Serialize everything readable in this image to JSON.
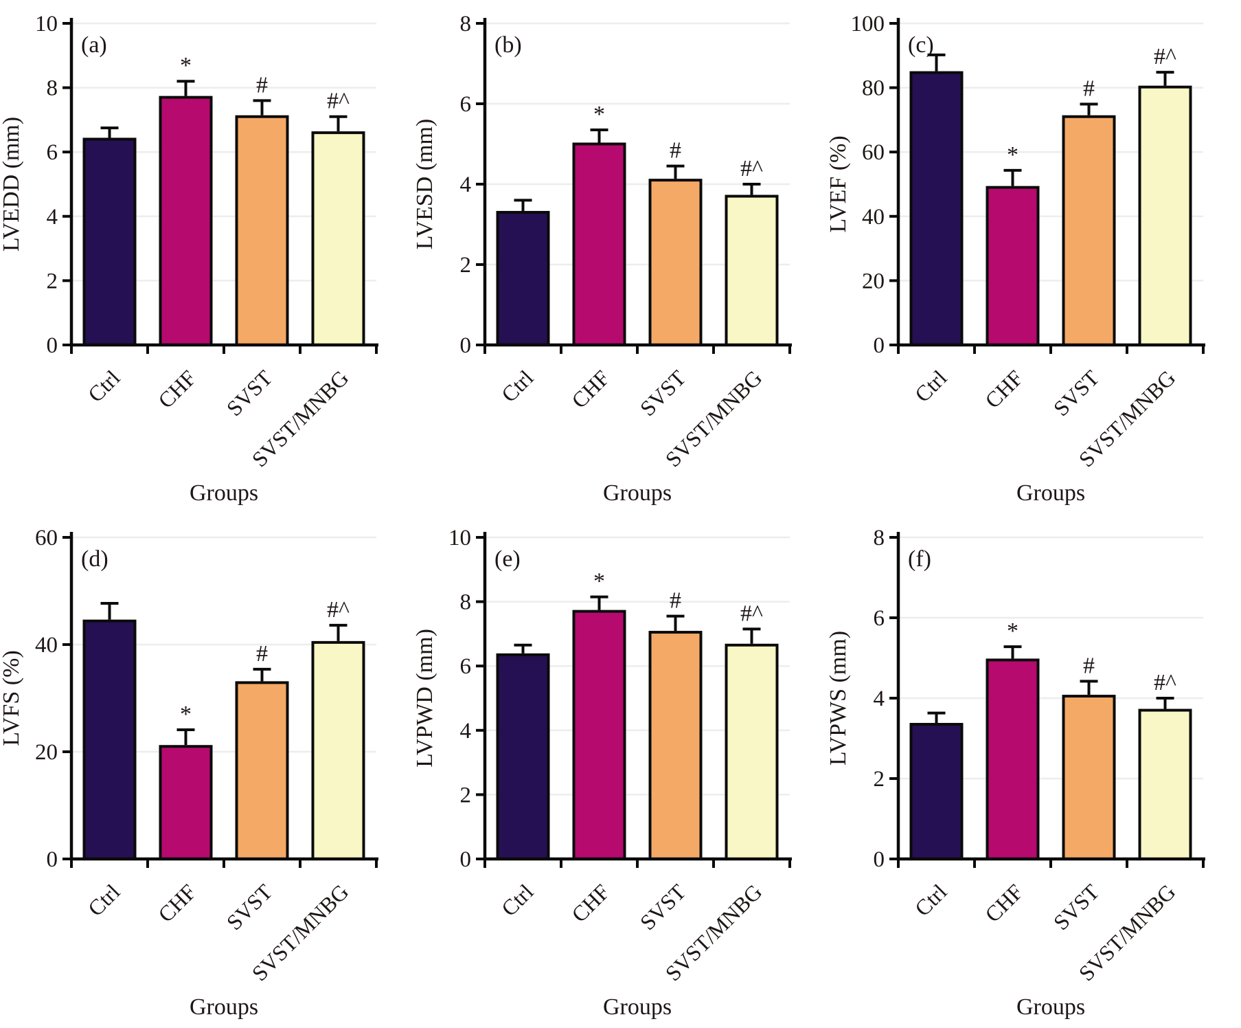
{
  "figure": {
    "background": "#ffffff",
    "ink_color": "#1e1616",
    "axis_color": "#0a0a0a",
    "grid_color": "#ededed",
    "bar_edge_color": "#0a0a0a",
    "bar_colors": [
      "#241052",
      "#b60a6f",
      "#f5a966",
      "#f8f7c5"
    ],
    "categories": [
      "Ctrl",
      "CHF",
      "SVST",
      "SVST/MNBG"
    ],
    "x_axis_title": "Groups"
  },
  "chart_data": [
    {
      "type": "bar",
      "panel": "(a)",
      "ylabel": "LVEDD (mm)",
      "xlabel": "Groups",
      "categories": [
        "Ctrl",
        "CHF",
        "SVST",
        "SVST/MNBG"
      ],
      "values": [
        6.4,
        7.7,
        7.1,
        6.6
      ],
      "errors": [
        0.35,
        0.5,
        0.5,
        0.5
      ],
      "sig_markers": [
        "",
        "*",
        "#",
        "#^"
      ],
      "ylim": [
        0,
        10
      ],
      "yticks": [
        0,
        2,
        4,
        6,
        8,
        10
      ],
      "grid": "horizontal",
      "legend": "none"
    },
    {
      "type": "bar",
      "panel": "(b)",
      "ylabel": "LVESD (mm)",
      "xlabel": "Groups",
      "categories": [
        "Ctrl",
        "CHF",
        "SVST",
        "SVST/MNBG"
      ],
      "values": [
        3.3,
        5.0,
        4.1,
        3.7
      ],
      "errors": [
        0.3,
        0.35,
        0.35,
        0.3
      ],
      "sig_markers": [
        "",
        "*",
        "#",
        "#^"
      ],
      "ylim": [
        0,
        8
      ],
      "yticks": [
        0,
        2,
        4,
        6,
        8
      ],
      "grid": "horizontal",
      "legend": "none"
    },
    {
      "type": "bar",
      "panel": "(c)",
      "ylabel": "LVEF (%)",
      "xlabel": "Groups",
      "categories": [
        "Ctrl",
        "CHF",
        "SVST",
        "SVST/MNBG"
      ],
      "values": [
        84.7,
        49.0,
        71.0,
        80.2
      ],
      "errors": [
        5.5,
        5.3,
        3.9,
        4.6
      ],
      "sig_markers": [
        "",
        "*",
        "#",
        "#^"
      ],
      "ylim": [
        0,
        100
      ],
      "yticks": [
        0,
        20,
        40,
        60,
        80,
        100
      ],
      "grid": "horizontal",
      "legend": "none"
    },
    {
      "type": "bar",
      "panel": "(d)",
      "ylabel": "LVFS (%)",
      "xlabel": "Groups",
      "categories": [
        "Ctrl",
        "CHF",
        "SVST",
        "SVST/MNBG"
      ],
      "values": [
        44.4,
        21.0,
        32.9,
        40.4
      ],
      "errors": [
        3.3,
        3.1,
        2.5,
        3.2
      ],
      "sig_markers": [
        "",
        "*",
        "#",
        "#^"
      ],
      "ylim": [
        0,
        60
      ],
      "yticks": [
        0,
        20,
        40,
        60
      ],
      "grid": "horizontal",
      "legend": "none"
    },
    {
      "type": "bar",
      "panel": "(e)",
      "ylabel": "LVPWD (mm)",
      "xlabel": "Groups",
      "categories": [
        "Ctrl",
        "CHF",
        "SVST",
        "SVST/MNBG"
      ],
      "values": [
        6.35,
        7.7,
        7.05,
        6.65
      ],
      "errors": [
        0.3,
        0.45,
        0.5,
        0.5
      ],
      "sig_markers": [
        "",
        "*",
        "#",
        "#^"
      ],
      "ylim": [
        0,
        10
      ],
      "yticks": [
        0,
        2,
        4,
        6,
        8,
        10
      ],
      "grid": "horizontal",
      "legend": "none"
    },
    {
      "type": "bar",
      "panel": "(f)",
      "ylabel": "LVPWS (mm)",
      "xlabel": "Groups",
      "categories": [
        "Ctrl",
        "CHF",
        "SVST",
        "SVST/MNBG"
      ],
      "values": [
        3.35,
        4.95,
        4.05,
        3.7
      ],
      "errors": [
        0.28,
        0.33,
        0.37,
        0.3
      ],
      "sig_markers": [
        "",
        "*",
        "#",
        "#^"
      ],
      "ylim": [
        0,
        8
      ],
      "yticks": [
        0,
        2,
        4,
        6,
        8
      ],
      "grid": "horizontal",
      "legend": "none"
    }
  ]
}
